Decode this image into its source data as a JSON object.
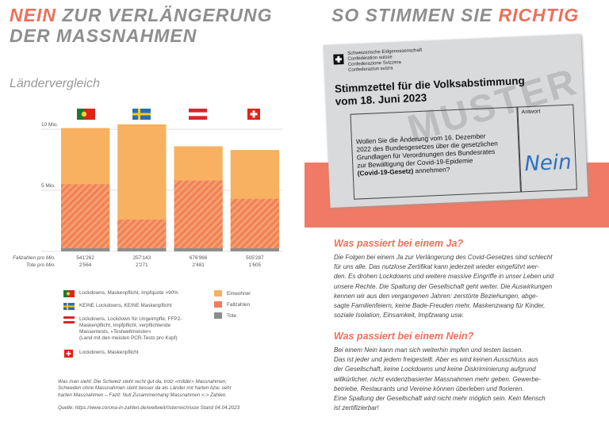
{
  "left": {
    "title_highlight": "NEIN",
    "title_rest": "ZUR VERLÄNGERUNG DER MASSNAHMEN",
    "subtitle": "Ländervergleich",
    "stats": {
      "labels": [
        "Fallzahlen pro Mio.",
        "Tote pro Mio."
      ],
      "values": [
        [
          "541'262",
          "2'564"
        ],
        [
          "257'143",
          "2'271"
        ],
        [
          "676'966",
          "2'481"
        ],
        [
          "505'287",
          "1'605"
        ]
      ]
    },
    "country_legend": [
      [
        "Lockdowns, Maskenpflicht, Impfquote >90%"
      ],
      [
        "KEINE Lockdowns, KEINE Maskenpflicht"
      ],
      [
        "Lockdowns, Lockdown für Ungeimpfte, FFP2-",
        "Maskenpflicht, Impfpflicht, verpflichtende",
        "Massentests, «Testweltmeister»",
        "(Land mit den meisten PCR-Tests pro Kopf)"
      ],
      [
        "Lockdowns, Maskenpflicht"
      ]
    ],
    "footnote": [
      "Was man sieht: Die Schweiz steht recht gut da, trotz «milder» Massnahmen;",
      "Schweden ohne Massnahmen steht besser da als Länder mit harten bzw. sehr",
      "harten Massnahmen – Fazit: Null Zusammenhang Massnahmen <-> Zahlen."
    ],
    "source": "Quelle: https://www.corona-in-zahlen.de/weltweit/österreich/usw Stand 04.04.2023"
  },
  "chart_data": {
    "type": "bar",
    "overlay": true,
    "categories": [
      null,
      null,
      null,
      null
    ],
    "series": [
      {
        "name": "Einwohner",
        "color": "#f7b160",
        "values": [
          10100000,
          10400000,
          8600000,
          8300000
        ]
      },
      {
        "name": "Fallzahlen",
        "color": "#f07f5b",
        "pattern": "hatched",
        "values": [
          5500000,
          2600000,
          5800000,
          4300000
        ]
      },
      {
        "name": "Tote",
        "color": "#8c8c8c",
        "values": [
          250000,
          250000,
          250000,
          250000
        ]
      }
    ],
    "ylim": [
      0,
      11000000
    ],
    "yticks": [
      {
        "value": 5000000,
        "label": "5 Mio."
      },
      {
        "value": 10000000,
        "label": "10 Mio."
      }
    ],
    "grid": true
  },
  "right": {
    "title_rest": "SO STIMMEN SIE",
    "title_highlight": "RICHTIG",
    "ballot": {
      "header": [
        "Schweizerische Eidgenossenschaft",
        "Confédération suisse",
        "Confederazione Svizzera",
        "Confederaziun svizra"
      ],
      "title": [
        "Stimmzettel für die Volksabstimmung",
        "vom 18. Juni 2023"
      ],
      "watermark": "MUSTER",
      "answer_label": "Antwort",
      "question": [
        "Wollen Sie die Änderung vom 16. Dezember",
        "2022 des Bundesgesetzes über die gesetzlichen",
        "Grundlagen für Verordnungen des Bundesrates",
        "zur Bewältigung der Covid-19-Epidemie"
      ],
      "question_bold": "(Covid-19-Gesetz)",
      "question_end": " annehmen?",
      "answer": "Nein"
    },
    "sections": [
      {
        "heading": "Was passiert bei einem Ja?",
        "lines": [
          "Die Folgen bei einem Ja zur Verlängerung des Covid-Gesetzes sind schlecht",
          "für uns alle. Das nutzlose Zertifikat kann jederzeit wieder eingeführt wer-",
          "den. Es drohen Lockdowns und weitere massive Eingriffe in unser Leben und",
          "unsere Rechte. Die Spaltung der Gesellschaft geht weiter. Die Auswirkungen",
          "kennen wir aus den vergangenen Jahren: zerstörte Beziehungen, abge-",
          "sagte Familienfeiern, keine Bade-Freuden mehr, Maskenzwang für Kinder,",
          "soziale Isolation, Einsamkeit, Impfzwang usw."
        ]
      },
      {
        "heading": "Was passiert bei einem Nein?",
        "lines": [
          "Bei einem Nein kann man sich weiterhin impfen und testen lassen.",
          "Das ist jeder und jedem freigestellt. Aber es wird keinen Ausschluss aus",
          "der Gesellschaft, keine Lockdowns und keine Diskriminierung aufgrund",
          "willkürlicher, nicht evidenzbasierter Massnahmen mehr geben. Gewerbe-",
          "betriebe, Restaurants und Vereine können überleben und florieren.",
          "Eine Spaltung der Gesellschaft wird nicht mehr möglich sein. Kein Mensch",
          "ist zertifizierbar!"
        ]
      }
    ]
  }
}
